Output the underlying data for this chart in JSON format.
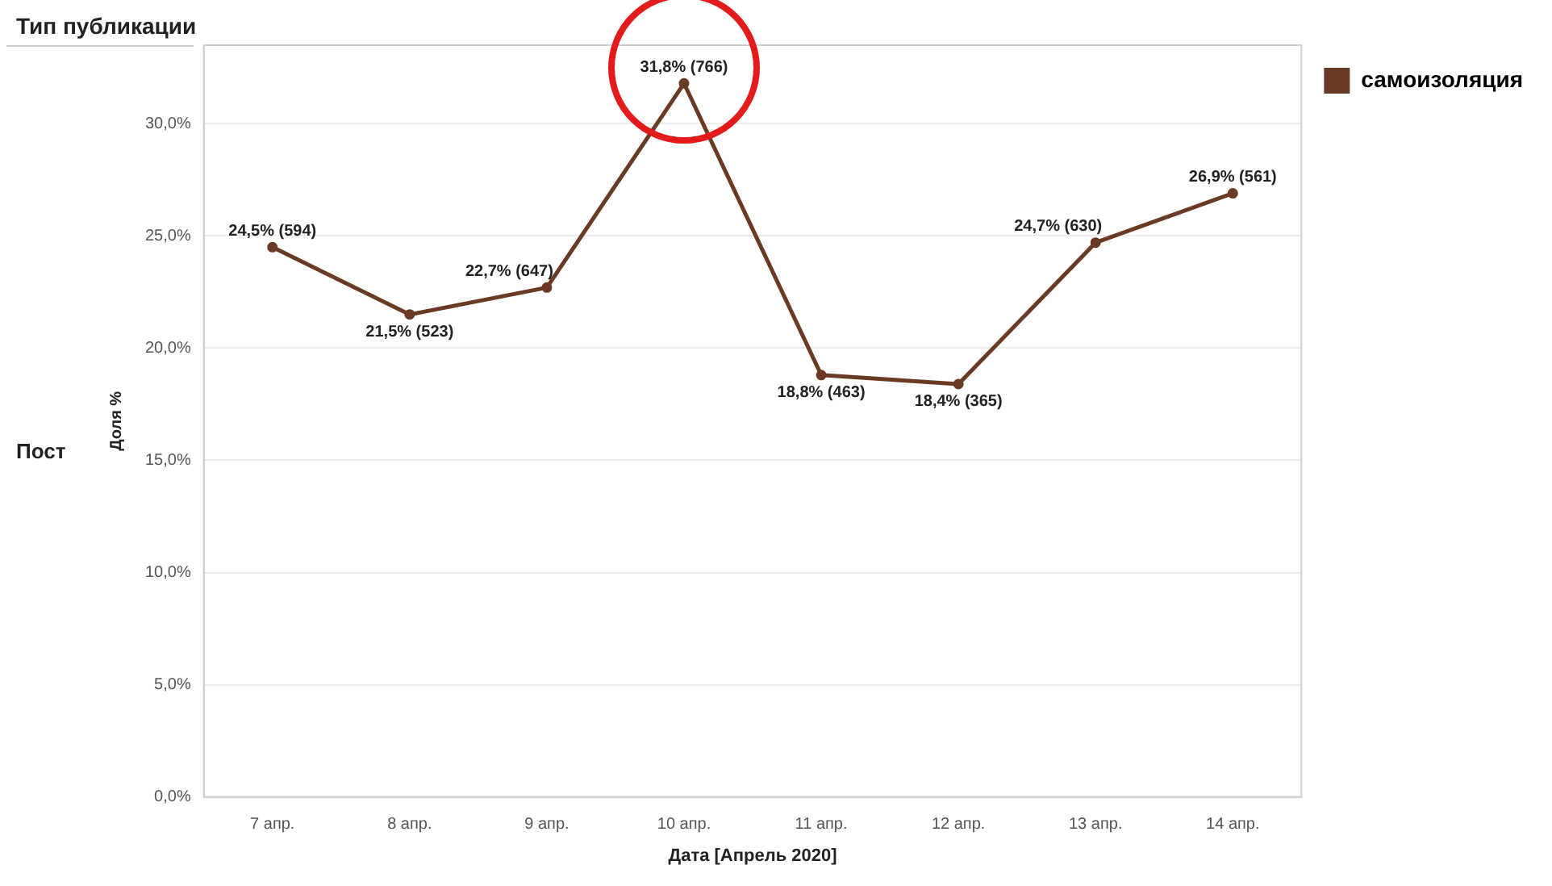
{
  "chart_data": {
    "type": "line",
    "title": "Тип публикации",
    "annotations": [
      "Пост"
    ],
    "xlabel": "Дата [Апрель 2020]",
    "ylabel": "Доля %",
    "categories": [
      "7 апр.",
      "8 апр.",
      "9 апр.",
      "10 апр.",
      "11 апр.",
      "12 апр.",
      "13 апр.",
      "14 апр."
    ],
    "series": [
      {
        "name": "самоизоляция",
        "color": "#6b3a24",
        "values": [
          24.5,
          21.5,
          22.7,
          31.8,
          18.8,
          18.4,
          24.7,
          26.9
        ],
        "value_labels": [
          "24,5% (594)",
          "21,5% (523)",
          "22,7% (647)",
          "31,8% (766)",
          "18,8% (463)",
          "18,4% (365)",
          "24,7% (630)",
          "26,9% (561)"
        ]
      }
    ],
    "ylim": [
      0,
      33.5
    ],
    "yticks": [
      {
        "value": 0,
        "label": "0,0%"
      },
      {
        "value": 5,
        "label": "5,0%"
      },
      {
        "value": 10,
        "label": "10,0%"
      },
      {
        "value": 15,
        "label": "15,0%"
      },
      {
        "value": 20,
        "label": "20,0%"
      },
      {
        "value": 25,
        "label": "25,0%"
      },
      {
        "value": 30,
        "label": "30,0%"
      }
    ],
    "grid": "y",
    "legend": "right",
    "marker": "circle",
    "line_style": "solid"
  }
}
